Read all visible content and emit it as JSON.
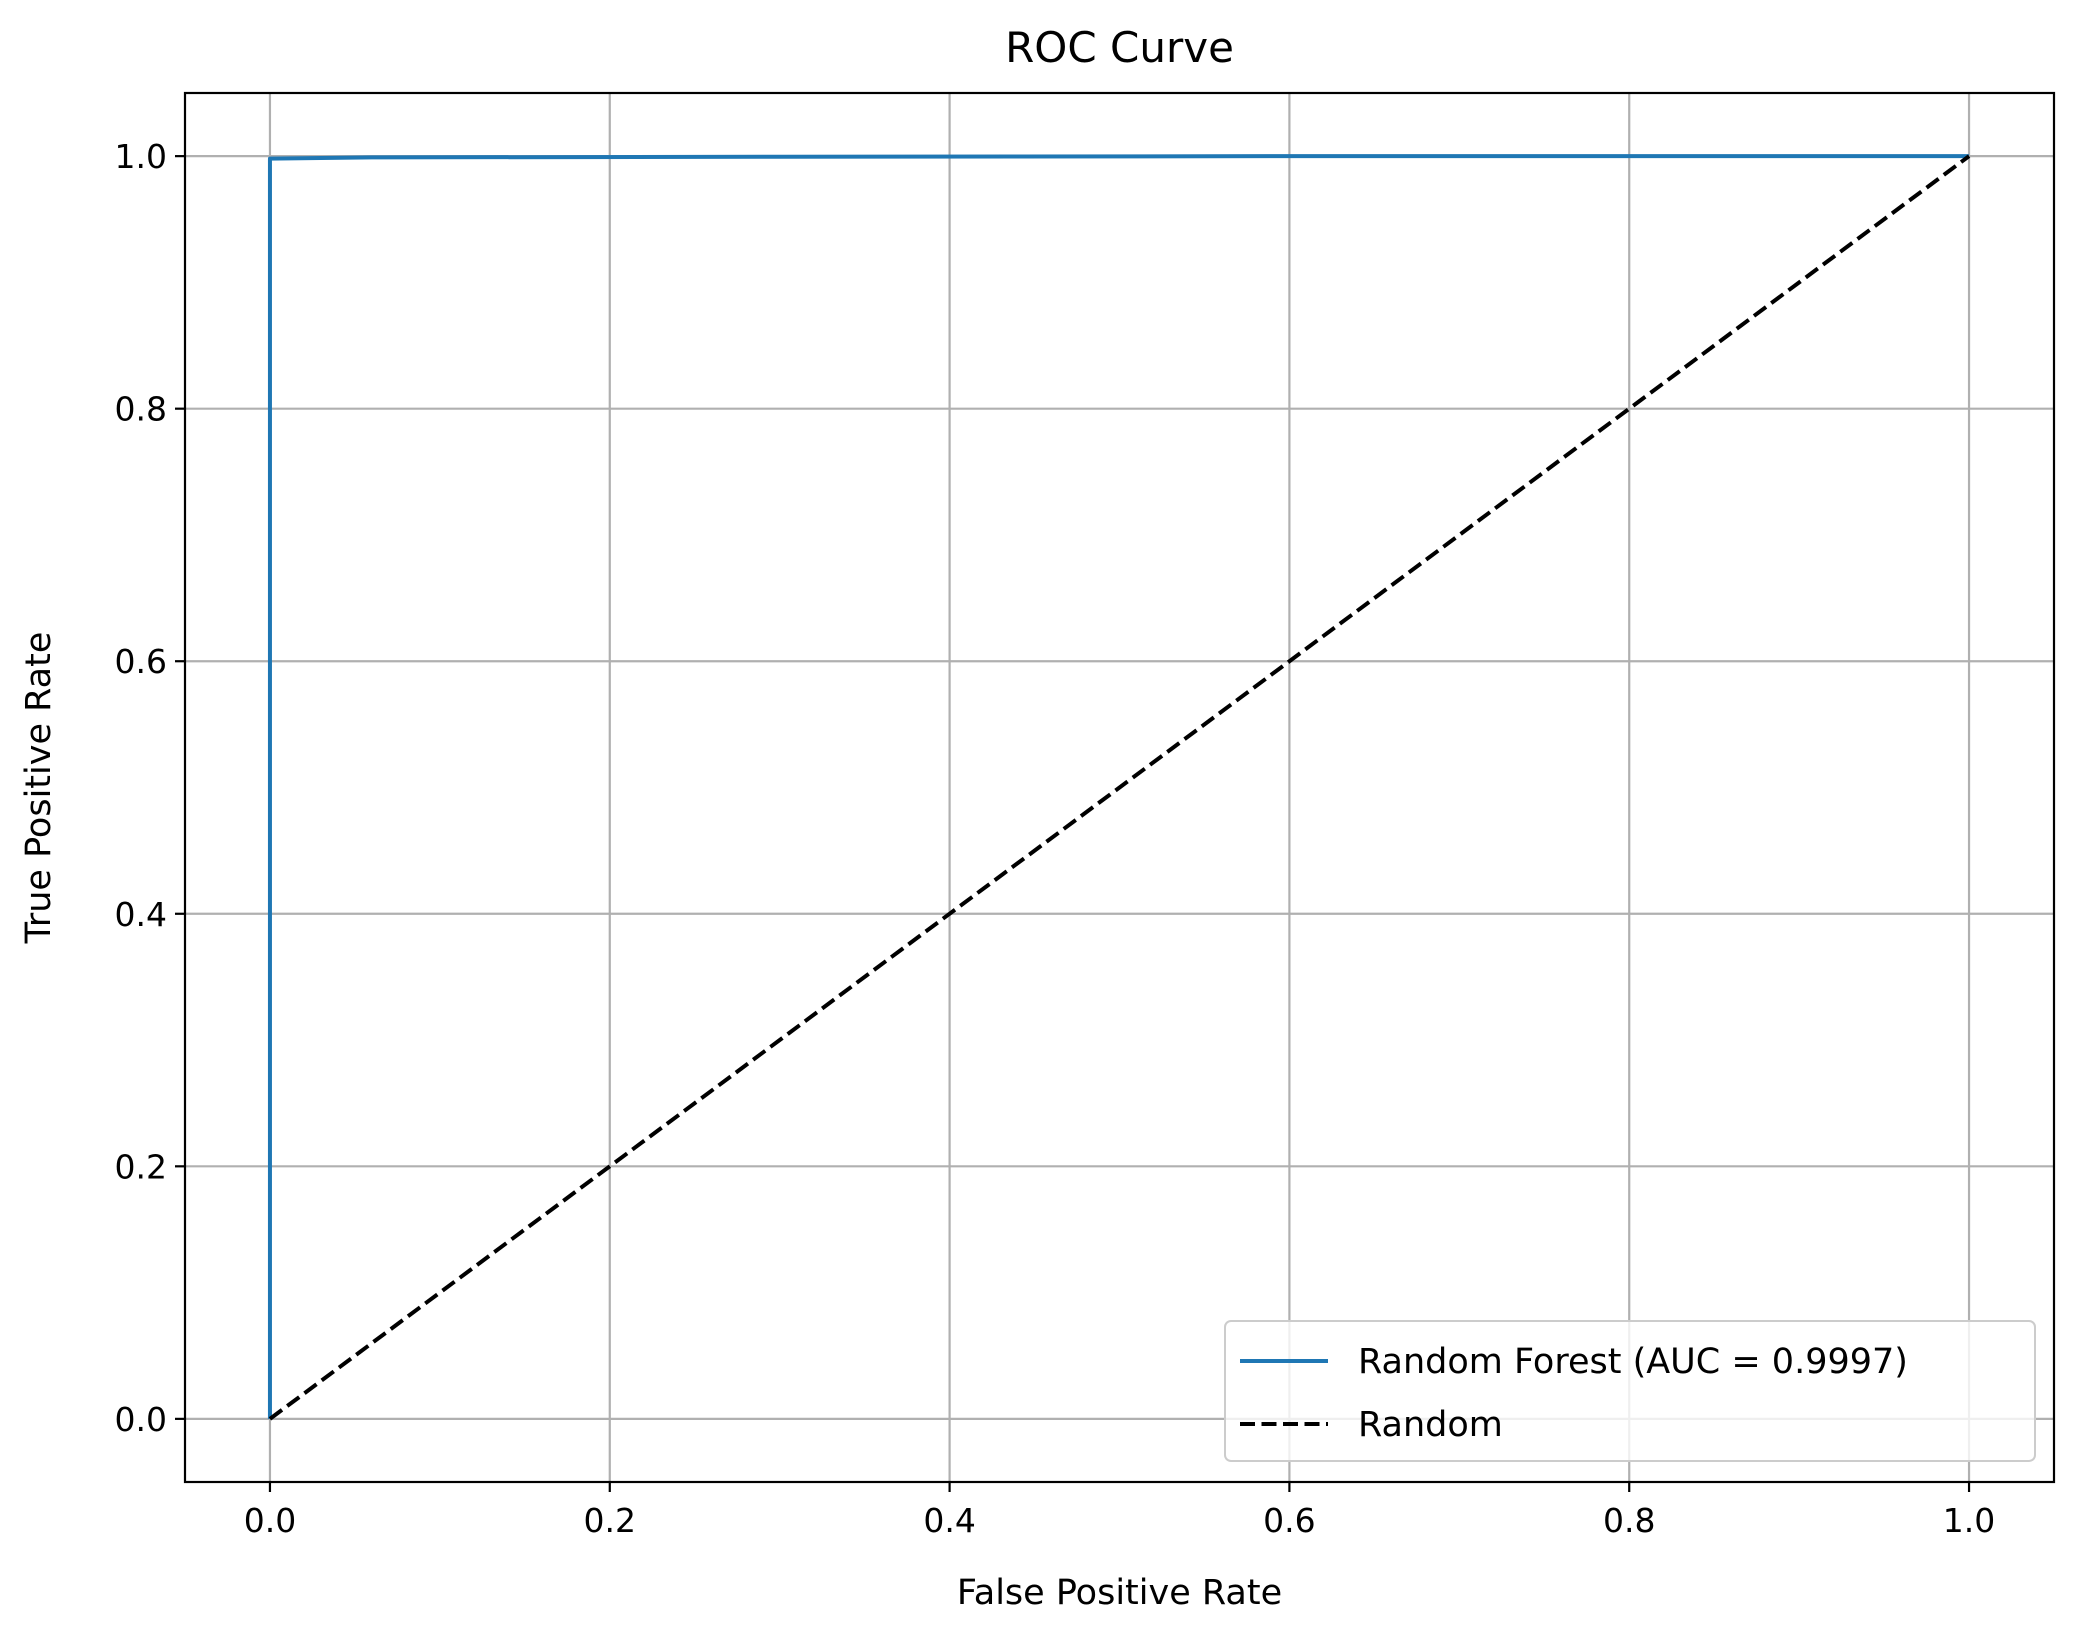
{
  "chart_data": {
    "type": "line",
    "title": "ROC Curve",
    "xlabel": "False Positive Rate",
    "ylabel": "True Positive Rate",
    "xlim": [
      -0.05,
      1.05
    ],
    "ylim": [
      -0.05,
      1.05
    ],
    "x_ticks": [
      "0.0",
      "0.2",
      "0.4",
      "0.6",
      "0.8",
      "1.0"
    ],
    "y_ticks": [
      "0.0",
      "0.2",
      "0.4",
      "0.6",
      "0.8",
      "1.0"
    ],
    "grid": true,
    "legend_position": "lower right",
    "series": [
      {
        "name": "Random Forest (AUC = 0.9997)",
        "color": "#1f77b4",
        "line_style": "solid",
        "x": [
          0.0,
          0.0,
          0.0,
          0.06,
          0.3,
          0.6,
          1.0
        ],
        "y": [
          0.0,
          0.5,
          0.998,
          0.999,
          0.9995,
          1.0,
          1.0
        ]
      },
      {
        "name": "Random",
        "color": "#000000",
        "line_style": "dashed",
        "x": [
          0.0,
          1.0
        ],
        "y": [
          0.0,
          1.0
        ]
      }
    ]
  }
}
